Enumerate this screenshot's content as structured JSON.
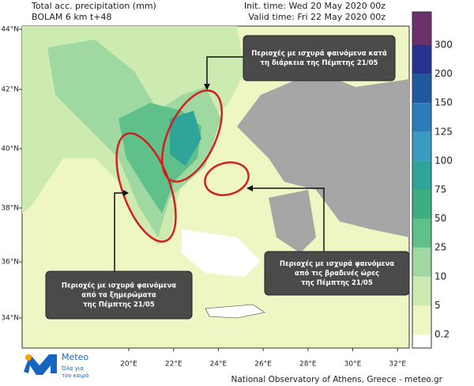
{
  "header": {
    "title_lines": [
      "Total acc. precipitation (mm)",
      "BOLAM 6 km t+48"
    ],
    "init_time": "Init. time: Wed 20 May 2020 00z",
    "valid_time": "Valid time: Fri 22 May 2020 00z"
  },
  "axes": {
    "lat_labels": [
      "44°N",
      "42°N",
      "40°N",
      "38°N",
      "36°N",
      "34°N"
    ],
    "lon_labels": [
      "20°E",
      "22°E",
      "24°E",
      "26°E",
      "28°E",
      "30°E",
      "32°E"
    ]
  },
  "colorbar": {
    "levels": [
      300,
      200,
      150,
      125,
      100,
      75,
      50,
      25,
      10,
      5,
      0.2
    ],
    "colors": [
      "#6b2f6b",
      "#23338f",
      "#1f5a9e",
      "#2b7bb9",
      "#3a9bc0",
      "#2fa59a",
      "#3bb07e",
      "#5fc08a",
      "#9fd8a0",
      "#cdebb0",
      "#eef6c4",
      "#ffffff"
    ]
  },
  "annotations": [
    {
      "lines": [
        "Περιοχές με ισχυρά φαινόμενα  κατά",
        "τη διάρκεια  της Πέμπτης 21/05"
      ]
    },
    {
      "lines": [
        "Περιοχές με ισχυρά φαινόμενα",
        "από τις βραδινές ώρες",
        "της Πέμπτης 21/05"
      ]
    },
    {
      "lines": [
        "Περιοχές με ισχυρά φαινόμενα",
        "από τα ξημερώματα",
        "της Πέμπτης 21/05"
      ]
    }
  ],
  "logo": {
    "name": "Meteo",
    "tagline": [
      "Όλα για",
      "τον καιρό"
    ]
  },
  "footer": "National Observatory of Athens, Greece - meteo.gr"
}
